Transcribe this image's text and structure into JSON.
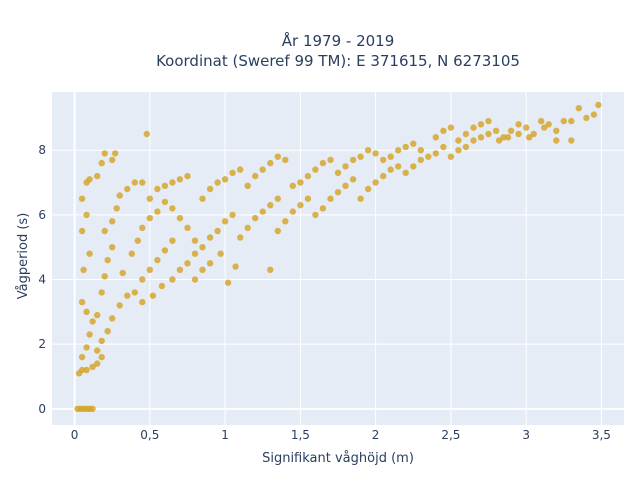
{
  "chart_data": {
    "type": "scatter",
    "title": "År 1979 - 2019",
    "subtitle": "Koordinat (Sweref 99 TM): E 371615, N 6273105",
    "xlabel": "Signifikant våghöjd (m)",
    "ylabel": "Vågperiod (s)",
    "xlim": [
      -0.15,
      3.65
    ],
    "ylim": [
      -0.5,
      9.8
    ],
    "x_ticks": [
      0,
      0.5,
      1,
      1.5,
      2,
      2.5,
      3,
      3.5
    ],
    "x_tick_labels": [
      "0",
      "0,5",
      "1",
      "1,5",
      "2",
      "2,5",
      "3",
      "3,5"
    ],
    "y_ticks": [
      0,
      2,
      4,
      6,
      8
    ],
    "y_tick_labels": [
      "0",
      "2",
      "4",
      "6",
      "8"
    ],
    "grid": true,
    "legend": "none",
    "marker_color": "#d4a323",
    "plot_background": "#e5ecf6",
    "series": [
      {
        "values": [
          [
            0.02,
            0
          ],
          [
            0.04,
            0
          ],
          [
            0.06,
            0
          ],
          [
            0.08,
            0
          ],
          [
            0.1,
            0
          ],
          [
            0.12,
            0
          ],
          [
            0.03,
            1.1
          ],
          [
            0.05,
            1.2
          ],
          [
            0.08,
            1.2
          ],
          [
            0.12,
            1.3
          ],
          [
            0.15,
            1.4
          ],
          [
            0.18,
            1.6
          ],
          [
            0.05,
            1.6
          ],
          [
            0.08,
            1.9
          ],
          [
            0.1,
            2.3
          ],
          [
            0.12,
            2.7
          ],
          [
            0.08,
            3.0
          ],
          [
            0.05,
            3.3
          ],
          [
            0.06,
            4.3
          ],
          [
            0.1,
            4.8
          ],
          [
            0.05,
            5.5
          ],
          [
            0.08,
            6.0
          ],
          [
            0.05,
            6.5
          ],
          [
            0.08,
            7.0
          ],
          [
            0.1,
            7.1
          ],
          [
            0.15,
            7.2
          ],
          [
            0.18,
            7.6
          ],
          [
            0.2,
            7.9
          ],
          [
            0.25,
            7.7
          ],
          [
            0.27,
            7.9
          ],
          [
            0.15,
            1.8
          ],
          [
            0.18,
            2.1
          ],
          [
            0.22,
            2.4
          ],
          [
            0.25,
            2.8
          ],
          [
            0.3,
            3.2
          ],
          [
            0.35,
            3.5
          ],
          [
            0.15,
            2.9
          ],
          [
            0.18,
            3.6
          ],
          [
            0.2,
            4.1
          ],
          [
            0.22,
            4.6
          ],
          [
            0.25,
            5.0
          ],
          [
            0.2,
            5.5
          ],
          [
            0.25,
            5.8
          ],
          [
            0.28,
            6.2
          ],
          [
            0.3,
            6.6
          ],
          [
            0.35,
            6.8
          ],
          [
            0.4,
            7.0
          ],
          [
            0.45,
            7.0
          ],
          [
            0.32,
            4.2
          ],
          [
            0.38,
            4.8
          ],
          [
            0.42,
            5.2
          ],
          [
            0.45,
            5.6
          ],
          [
            0.5,
            5.9
          ],
          [
            0.55,
            6.1
          ],
          [
            0.4,
            3.6
          ],
          [
            0.45,
            4.0
          ],
          [
            0.5,
            4.3
          ],
          [
            0.55,
            4.6
          ],
          [
            0.6,
            4.9
          ],
          [
            0.65,
            5.2
          ],
          [
            0.45,
            3.3
          ],
          [
            0.52,
            3.5
          ],
          [
            0.58,
            3.8
          ],
          [
            0.65,
            4.0
          ],
          [
            0.7,
            4.3
          ],
          [
            0.75,
            4.5
          ],
          [
            0.5,
            6.5
          ],
          [
            0.55,
            6.8
          ],
          [
            0.6,
            6.9
          ],
          [
            0.65,
            7.0
          ],
          [
            0.7,
            7.1
          ],
          [
            0.75,
            7.2
          ],
          [
            0.48,
            8.5
          ],
          [
            0.6,
            6.4
          ],
          [
            0.65,
            6.2
          ],
          [
            0.7,
            5.9
          ],
          [
            0.75,
            5.6
          ],
          [
            0.8,
            5.2
          ],
          [
            0.8,
            4.8
          ],
          [
            0.85,
            5.0
          ],
          [
            0.9,
            5.3
          ],
          [
            0.95,
            5.5
          ],
          [
            1.0,
            5.8
          ],
          [
            1.05,
            6.0
          ],
          [
            0.85,
            6.5
          ],
          [
            0.9,
            6.8
          ],
          [
            0.95,
            7.0
          ],
          [
            1.0,
            7.1
          ],
          [
            1.05,
            7.3
          ],
          [
            1.1,
            7.4
          ],
          [
            0.8,
            4.0
          ],
          [
            0.85,
            4.3
          ],
          [
            0.9,
            4.5
          ],
          [
            0.97,
            4.8
          ],
          [
            1.02,
            3.9
          ],
          [
            1.07,
            4.4
          ],
          [
            1.1,
            5.3
          ],
          [
            1.15,
            5.6
          ],
          [
            1.2,
            5.9
          ],
          [
            1.25,
            6.1
          ],
          [
            1.3,
            6.3
          ],
          [
            1.35,
            6.5
          ],
          [
            1.15,
            6.9
          ],
          [
            1.2,
            7.2
          ],
          [
            1.25,
            7.4
          ],
          [
            1.3,
            7.6
          ],
          [
            1.35,
            7.8
          ],
          [
            1.4,
            7.7
          ],
          [
            1.3,
            4.3
          ],
          [
            1.35,
            5.5
          ],
          [
            1.4,
            5.8
          ],
          [
            1.45,
            6.1
          ],
          [
            1.5,
            6.3
          ],
          [
            1.55,
            6.5
          ],
          [
            1.45,
            6.9
          ],
          [
            1.5,
            7.0
          ],
          [
            1.55,
            7.2
          ],
          [
            1.6,
            7.4
          ],
          [
            1.65,
            7.6
          ],
          [
            1.7,
            7.7
          ],
          [
            1.6,
            6.0
          ],
          [
            1.65,
            6.2
          ],
          [
            1.7,
            6.5
          ],
          [
            1.75,
            6.7
          ],
          [
            1.8,
            6.9
          ],
          [
            1.85,
            7.1
          ],
          [
            1.75,
            7.3
          ],
          [
            1.8,
            7.5
          ],
          [
            1.85,
            7.7
          ],
          [
            1.9,
            7.8
          ],
          [
            1.95,
            8.0
          ],
          [
            2.0,
            7.9
          ],
          [
            1.9,
            6.5
          ],
          [
            1.95,
            6.8
          ],
          [
            2.0,
            7.0
          ],
          [
            2.05,
            7.2
          ],
          [
            2.1,
            7.4
          ],
          [
            2.15,
            7.5
          ],
          [
            2.05,
            7.7
          ],
          [
            2.1,
            7.8
          ],
          [
            2.15,
            8.0
          ],
          [
            2.2,
            8.1
          ],
          [
            2.25,
            8.2
          ],
          [
            2.3,
            8.0
          ],
          [
            2.2,
            7.3
          ],
          [
            2.25,
            7.5
          ],
          [
            2.3,
            7.7
          ],
          [
            2.35,
            7.8
          ],
          [
            2.4,
            7.9
          ],
          [
            2.45,
            8.1
          ],
          [
            2.4,
            8.4
          ],
          [
            2.45,
            8.6
          ],
          [
            2.5,
            8.7
          ],
          [
            2.55,
            8.3
          ],
          [
            2.6,
            8.5
          ],
          [
            2.65,
            8.7
          ],
          [
            2.5,
            7.8
          ],
          [
            2.55,
            8.0
          ],
          [
            2.6,
            8.1
          ],
          [
            2.65,
            8.3
          ],
          [
            2.7,
            8.4
          ],
          [
            2.75,
            8.5
          ],
          [
            2.7,
            8.8
          ],
          [
            2.75,
            8.9
          ],
          [
            2.8,
            8.6
          ],
          [
            2.85,
            8.4
          ],
          [
            2.9,
            8.6
          ],
          [
            2.95,
            8.8
          ],
          [
            3.0,
            8.7
          ],
          [
            3.05,
            8.5
          ],
          [
            3.1,
            8.9
          ],
          [
            3.15,
            8.8
          ],
          [
            3.2,
            8.6
          ],
          [
            3.25,
            8.9
          ],
          [
            3.3,
            8.9
          ],
          [
            3.35,
            9.3
          ],
          [
            3.4,
            9.0
          ],
          [
            3.45,
            9.1
          ],
          [
            3.48,
            9.4
          ],
          [
            3.3,
            8.3
          ],
          [
            3.2,
            8.3
          ],
          [
            3.12,
            8.7
          ],
          [
            3.02,
            8.4
          ],
          [
            2.95,
            8.5
          ],
          [
            2.88,
            8.4
          ],
          [
            2.82,
            8.3
          ]
        ]
      }
    ]
  }
}
